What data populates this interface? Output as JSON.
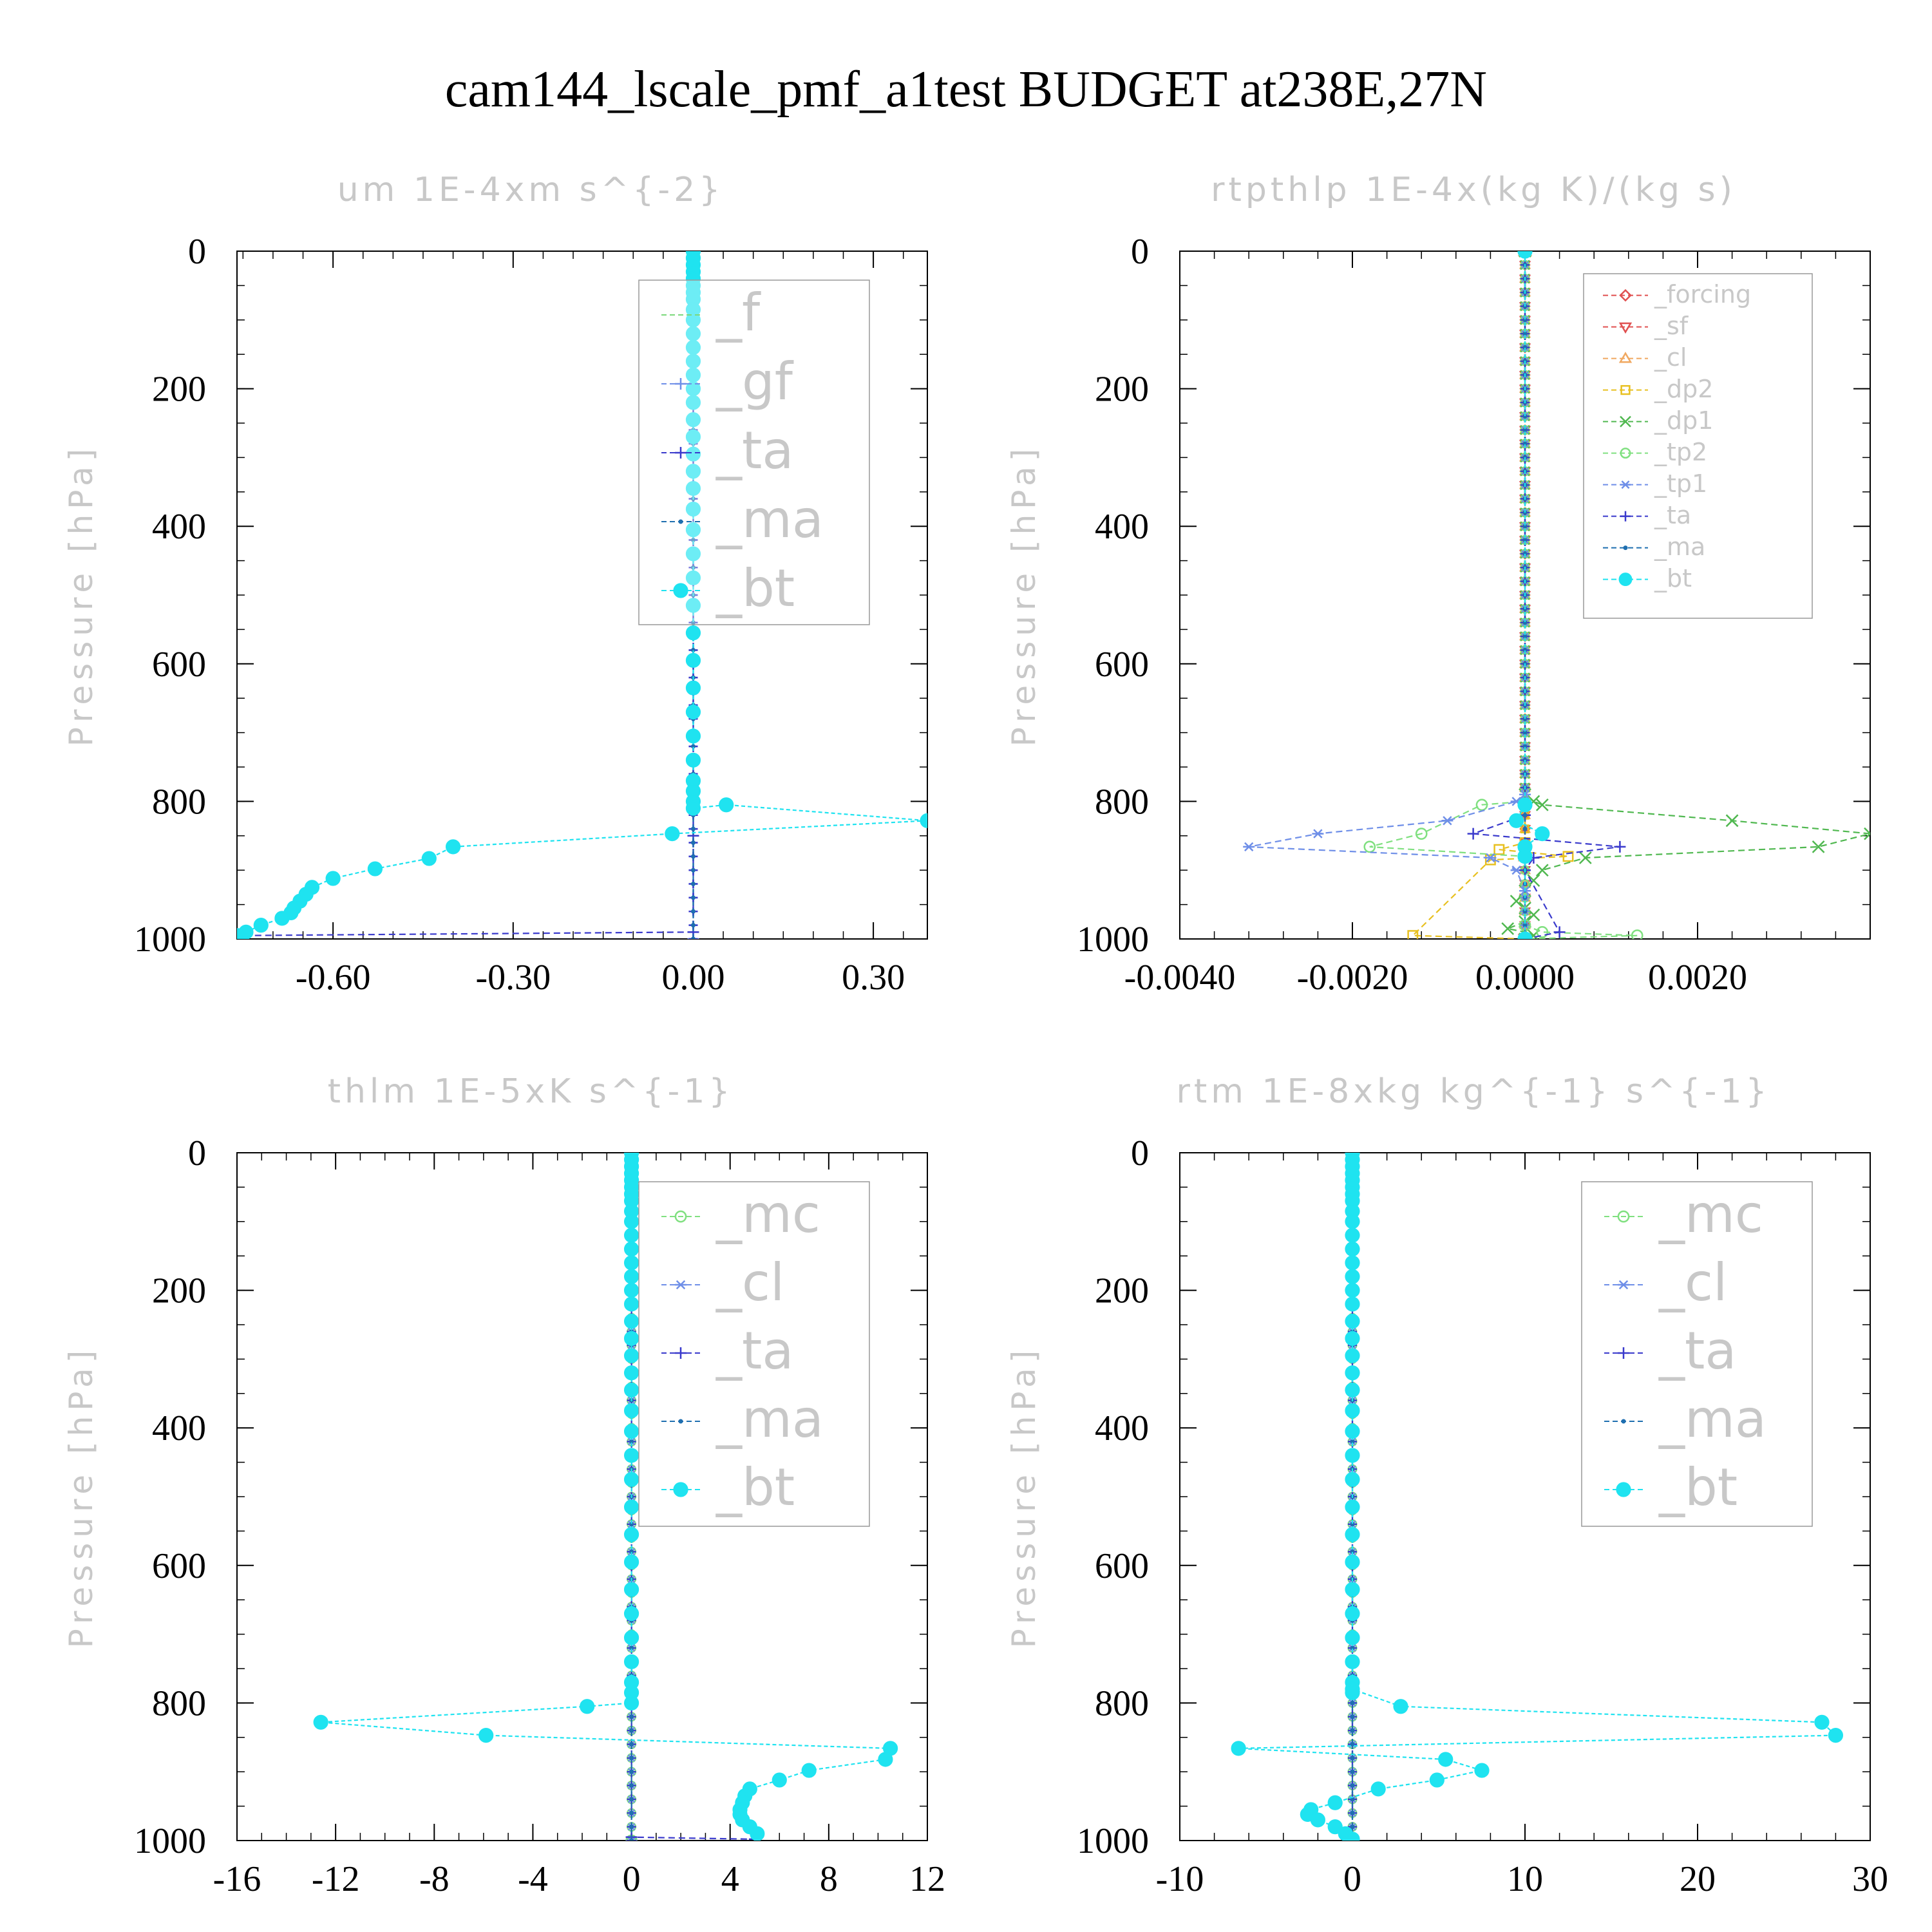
{
  "figure": {
    "title": "cam144_lscale_pmf_a1test  BUDGET at238E,27N"
  },
  "chart_data": [
    {
      "type": "line",
      "title": "um  1E-4xm s^{-2}",
      "ylabel": "Pressure [hPa]",
      "xlabel": "",
      "xlim": [
        -0.76,
        0.39
      ],
      "ylim": [
        0,
        1000
      ],
      "y_inverted": true,
      "xticks": [
        "-0.60",
        "-0.30",
        "0.00",
        "0.30"
      ],
      "xtick_values": [
        -0.6,
        -0.3,
        0.0,
        0.3
      ],
      "yticks": [
        "0",
        "200",
        "400",
        "600",
        "800",
        "1000"
      ],
      "grid": false,
      "legend_position": "top-right",
      "legend_size": "large",
      "series": [
        {
          "name": "_f",
          "color": "#7cd87c",
          "marker": "none",
          "x": [
            0,
            0
          ],
          "y": [
            0,
            1000
          ]
        },
        {
          "name": "_gf",
          "color": "#6f8fe8",
          "marker": "plus",
          "x": [
            0,
            0
          ],
          "y": [
            0,
            1000
          ]
        },
        {
          "name": "_ta",
          "color": "#3a3acc",
          "marker": "plus",
          "x": [
            0,
            0,
            0,
            -0.75
          ],
          "y": [
            0,
            850,
            990,
            995
          ]
        },
        {
          "name": "_ma",
          "color": "#1f6fb0",
          "marker": "dot",
          "x": [
            0,
            0
          ],
          "y": [
            0,
            1000
          ]
        },
        {
          "name": "_bt",
          "color": "#1fe3f0",
          "marker": "circle",
          "x": [
            0,
            0,
            0,
            0,
            0,
            0,
            0,
            0,
            0,
            0,
            0,
            0,
            0,
            0,
            0,
            0,
            0,
            0,
            0,
            0,
            0,
            0,
            0,
            0,
            0,
            0,
            0,
            0,
            0,
            0,
            0,
            0,
            0,
            0,
            0,
            0,
            0.055,
            0.39,
            -0.035,
            -0.4,
            -0.44,
            -0.53,
            -0.6,
            -0.635,
            -0.645,
            -0.655,
            -0.665,
            -0.67,
            -0.685,
            -0.72,
            -0.745,
            -0.76
          ],
          "y": [
            0,
            10,
            20,
            30,
            40,
            50,
            60,
            70,
            85,
            100,
            120,
            140,
            160,
            180,
            200,
            220,
            245,
            270,
            295,
            320,
            345,
            375,
            405,
            440,
            475,
            515,
            555,
            595,
            635,
            670,
            705,
            740,
            770,
            785,
            800,
            810,
            805,
            828,
            847,
            866,
            883,
            898,
            912,
            925,
            935,
            945,
            955,
            962,
            970,
            980,
            990,
            995
          ]
        }
      ]
    },
    {
      "type": "line",
      "title": "rtpthlp  1E-4x(kg K)/(kg s)",
      "ylabel": "Pressure [hPa]",
      "xlabel": "",
      "xlim": [
        -0.004,
        0.004
      ],
      "ylim": [
        0,
        1000
      ],
      "y_inverted": true,
      "xticks": [
        "-0.0040",
        "-0.0020",
        "0.0000",
        "0.0020"
      ],
      "xtick_values": [
        -0.004,
        -0.002,
        0.0,
        0.002
      ],
      "yticks": [
        "0",
        "200",
        "400",
        "600",
        "800",
        "1000"
      ],
      "grid": false,
      "legend_position": "top-right",
      "legend_size": "small",
      "series": [
        {
          "name": "_forcing",
          "color": "#e05050",
          "marker": "diamond",
          "x": [
            0,
            0
          ],
          "y": [
            0,
            1000
          ]
        },
        {
          "name": "_sf",
          "color": "#e05050",
          "marker": "tri-down",
          "x": [
            0,
            0
          ],
          "y": [
            0,
            1000
          ]
        },
        {
          "name": "_cl",
          "color": "#f0a860",
          "marker": "tri-up",
          "x": [
            0,
            0,
            0
          ],
          "y": [
            0,
            880,
            1000
          ]
        },
        {
          "name": "_dp2",
          "color": "#e8c020",
          "marker": "square",
          "x": [
            0,
            0,
            -0.0003,
            0.0005,
            -0.0004,
            -0.0013,
            0
          ],
          "y": [
            0,
            860,
            870,
            880,
            885,
            995,
            1000
          ]
        },
        {
          "name": "_dp1",
          "color": "#50b850",
          "marker": "x",
          "x": [
            0,
            0,
            0.0001,
            0.0002,
            0.0024,
            0.004,
            0.0034,
            0.0007,
            0.0002,
            0.0001,
            0,
            -0.0001,
            0,
            0.0001,
            0,
            -0.0002,
            0,
            0.0001,
            0
          ],
          "y": [
            0,
            790,
            800,
            805,
            828,
            847,
            866,
            882,
            900,
            915,
            930,
            945,
            955,
            965,
            975,
            985,
            990,
            995,
            1000
          ]
        },
        {
          "name": "_tp2",
          "color": "#80e080",
          "marker": "circle",
          "x": [
            0,
            0,
            -0.0005,
            -0.0012,
            -0.0018,
            0,
            0,
            0.0002,
            0.0013,
            0
          ],
          "y": [
            0,
            800,
            805,
            847,
            866,
            880,
            980,
            990,
            995,
            1000
          ]
        },
        {
          "name": "_tp1",
          "color": "#6f8fe8",
          "marker": "star",
          "x": [
            0,
            0,
            -0.0001,
            -0.0009,
            -0.0024,
            -0.0032,
            -0.0004,
            -0.0001,
            0,
            0
          ],
          "y": [
            0,
            790,
            800,
            828,
            847,
            866,
            882,
            900,
            930,
            1000
          ]
        },
        {
          "name": "_ta",
          "color": "#3a3acc",
          "marker": "plus",
          "x": [
            0,
            0,
            -0.0006,
            0.0011,
            0.0001,
            0,
            0.0004,
            0
          ],
          "y": [
            0,
            820,
            847,
            866,
            882,
            900,
            990,
            1000
          ]
        },
        {
          "name": "_ma",
          "color": "#1f6fb0",
          "marker": "dot",
          "x": [
            0,
            0
          ],
          "y": [
            0,
            1000
          ]
        },
        {
          "name": "_bt",
          "color": "#1fe3f0",
          "marker": "circle",
          "x": [
            0,
            0,
            -0.0001,
            0.0002,
            0,
            0,
            0
          ],
          "y": [
            0,
            805,
            828,
            847,
            866,
            880,
            1000
          ]
        }
      ]
    },
    {
      "type": "line",
      "title": "thlm  1E-5xK s^{-1}",
      "ylabel": "Pressure [hPa]",
      "xlabel": "",
      "xlim": [
        -16,
        12
      ],
      "ylim": [
        0,
        1000
      ],
      "y_inverted": true,
      "xticks": [
        "-16",
        "-12",
        "-8",
        "-4",
        "0",
        "4",
        "8",
        "12"
      ],
      "xtick_values": [
        -16,
        -12,
        -8,
        -4,
        0,
        4,
        8,
        12
      ],
      "yticks": [
        "0",
        "200",
        "400",
        "600",
        "800",
        "1000"
      ],
      "grid": false,
      "legend_position": "top-right",
      "legend_size": "large",
      "series": [
        {
          "name": "_mc",
          "color": "#80e080",
          "marker": "circle",
          "x": [
            0,
            0
          ],
          "y": [
            0,
            1000
          ]
        },
        {
          "name": "_cl",
          "color": "#6f8fe8",
          "marker": "star",
          "x": [
            0,
            0
          ],
          "y": [
            0,
            1000
          ]
        },
        {
          "name": "_ta",
          "color": "#3a3acc",
          "marker": "plus",
          "x": [
            0,
            0,
            5
          ],
          "y": [
            0,
            995,
            998
          ]
        },
        {
          "name": "_ma",
          "color": "#1f6fb0",
          "marker": "dot",
          "x": [
            0,
            0
          ],
          "y": [
            0,
            1000
          ]
        },
        {
          "name": "_bt",
          "color": "#1fe3f0",
          "marker": "circle",
          "x": [
            0,
            0,
            0,
            0,
            0,
            0,
            0,
            0,
            0,
            0,
            0,
            0,
            0,
            0,
            0,
            0,
            0,
            0,
            0,
            0,
            0,
            0,
            0,
            0,
            0,
            0,
            0,
            0,
            0,
            0,
            0,
            0,
            0,
            0,
            0,
            -1.8,
            -12.6,
            -5.9,
            10.5,
            10.3,
            7.2,
            6.0,
            4.8,
            4.6,
            4.5,
            4.4,
            4.4,
            4.5,
            4.8,
            5.1
          ],
          "y": [
            0,
            10,
            20,
            30,
            40,
            50,
            60,
            70,
            85,
            100,
            120,
            140,
            160,
            180,
            200,
            220,
            245,
            270,
            295,
            320,
            345,
            375,
            405,
            440,
            475,
            515,
            555,
            595,
            635,
            670,
            705,
            740,
            770,
            785,
            800,
            805,
            828,
            847,
            866,
            882,
            898,
            912,
            925,
            935,
            945,
            955,
            962,
            970,
            980,
            990
          ]
        }
      ]
    },
    {
      "type": "line",
      "title": "rtm  1E-8xkg kg^{-1} s^{-1}",
      "ylabel": "Pressure [hPa]",
      "xlabel": "",
      "xlim": [
        -10,
        30
      ],
      "ylim": [
        0,
        1000
      ],
      "y_inverted": true,
      "xticks": [
        "-10",
        "0",
        "10",
        "20",
        "30"
      ],
      "xtick_values": [
        -10,
        0,
        10,
        20,
        30
      ],
      "yticks": [
        "0",
        "200",
        "400",
        "600",
        "800",
        "1000"
      ],
      "grid": false,
      "legend_position": "top-right",
      "legend_size": "large",
      "series": [
        {
          "name": "_mc",
          "color": "#80e080",
          "marker": "circle",
          "x": [
            0,
            0
          ],
          "y": [
            0,
            1000
          ]
        },
        {
          "name": "_cl",
          "color": "#6f8fe8",
          "marker": "star",
          "x": [
            0,
            0
          ],
          "y": [
            0,
            1000
          ]
        },
        {
          "name": "_ta",
          "color": "#3a3acc",
          "marker": "plus",
          "x": [
            0,
            0
          ],
          "y": [
            0,
            1000
          ]
        },
        {
          "name": "_ma",
          "color": "#1f6fb0",
          "marker": "dot",
          "x": [
            0,
            0
          ],
          "y": [
            0,
            1000
          ]
        },
        {
          "name": "_bt",
          "color": "#1fe3f0",
          "marker": "circle",
          "x": [
            0,
            0,
            0,
            0,
            0,
            0,
            0,
            0,
            0,
            0,
            0,
            0,
            0,
            0,
            0,
            0,
            0,
            0,
            0,
            0,
            0,
            0,
            0,
            0,
            0,
            0,
            0,
            0,
            0,
            0,
            0,
            0,
            0,
            0,
            0,
            2.8,
            27.2,
            28.0,
            -6.6,
            5.4,
            7.5,
            4.9,
            1.5,
            -1.0,
            -2.4,
            -2.6,
            -2.0,
            -1.0,
            -0.4,
            0
          ],
          "y": [
            0,
            10,
            20,
            30,
            40,
            50,
            60,
            70,
            85,
            100,
            120,
            140,
            160,
            180,
            200,
            220,
            245,
            270,
            295,
            320,
            345,
            375,
            405,
            440,
            475,
            515,
            555,
            595,
            635,
            670,
            705,
            740,
            770,
            785,
            780,
            805,
            828,
            847,
            866,
            882,
            898,
            912,
            925,
            945,
            955,
            962,
            970,
            980,
            990,
            998
          ]
        }
      ]
    }
  ]
}
